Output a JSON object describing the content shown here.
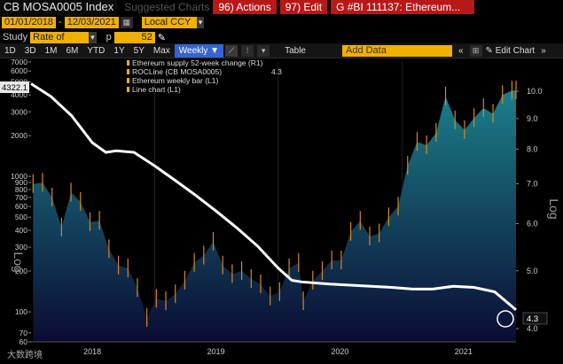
{
  "header": {
    "title": "CB MOSA0005 Index",
    "ghost_label": "Suggested Charts",
    "actions_button": "96) Actions",
    "edit_button": "97) Edit",
    "chart_title_button": "G #BI 111137: Ethereum..."
  },
  "date_range": {
    "start": "01/01/2018",
    "end": "12/03/2021",
    "currency": "Local CCY"
  },
  "study": {
    "label": "Study",
    "value": "Rate of Char",
    "p_label": "p",
    "p_value": "52"
  },
  "toolbar": {
    "periods": [
      "1D",
      "3D",
      "1M",
      "6M",
      "YTD",
      "1Y",
      "5Y",
      "Max"
    ],
    "frequency": "Weekly",
    "table_label": "Table",
    "add_data_placeholder": "Add Data",
    "edit_chart_label": "Edit Chart"
  },
  "watermark": "大数跨境",
  "colors": {
    "area_top": "#1c7f8a",
    "area_bottom": "#0a0c33",
    "bar": "#d98a16",
    "line": "#ffffff",
    "accent": "#f0b000",
    "red_button": "#b71818"
  },
  "chart_data": {
    "type": "area",
    "legend": [
      {
        "label": "Ethereum supply 52-week change (R1)",
        "value": "4.3"
      },
      {
        "label": "ROCLine (CB MOSA0005)",
        "value": "4.3"
      },
      {
        "label": "Ethereum weekly bar (L1)",
        "value": ""
      },
      {
        "label": "Line chart (L1)",
        "value": ""
      }
    ],
    "left_axis": {
      "label": "Log",
      "scale": "log",
      "ylim": [
        60,
        7000
      ],
      "ticks": [
        7000,
        6000,
        5000,
        4000,
        3000,
        2000,
        1000,
        900,
        800,
        700,
        600,
        500,
        400,
        300,
        200,
        100,
        70,
        60
      ]
    },
    "right_axis": {
      "label": "Log",
      "scale": "log",
      "ylim": [
        3.8,
        11.2
      ],
      "ticks": [
        10.0,
        9.0,
        8.0,
        7.0,
        6.0,
        5.0,
        4.0
      ]
    },
    "x_axis": {
      "ticks": [
        "2018",
        "2019",
        "2020",
        "2021"
      ],
      "xlim": [
        "2018-01-01",
        "2021-12-03"
      ]
    },
    "last_values": {
      "price": "4322.1",
      "supply_change": "4.3"
    },
    "series": [
      {
        "name": "Ethereum weekly bar (L1)",
        "x": [
          "2018-01-07",
          "2018-02-04",
          "2018-03-04",
          "2018-04-01",
          "2018-04-29",
          "2018-05-27",
          "2018-06-24",
          "2018-07-22",
          "2018-08-19",
          "2018-09-16",
          "2018-10-14",
          "2018-11-11",
          "2018-12-09",
          "2019-01-06",
          "2019-02-03",
          "2019-03-03",
          "2019-03-31",
          "2019-04-28",
          "2019-05-26",
          "2019-06-23",
          "2019-07-21",
          "2019-08-18",
          "2019-09-15",
          "2019-10-13",
          "2019-11-10",
          "2019-12-08",
          "2020-01-05",
          "2020-02-02",
          "2020-03-01",
          "2020-03-15",
          "2020-04-12",
          "2020-05-10",
          "2020-06-07",
          "2020-07-05",
          "2020-08-02",
          "2020-08-30",
          "2020-09-27",
          "2020-10-25",
          "2020-11-22",
          "2020-12-20",
          "2021-01-17",
          "2021-02-14",
          "2021-03-14",
          "2021-04-11",
          "2021-05-09",
          "2021-06-06",
          "2021-07-04",
          "2021-08-01",
          "2021-08-29",
          "2021-09-26",
          "2021-10-24",
          "2021-11-21",
          "2021-12-03"
        ],
        "values": [
          880,
          900,
          700,
          420,
          760,
          650,
          460,
          470,
          290,
          220,
          210,
          150,
          90,
          125,
          120,
          135,
          170,
          230,
          260,
          330,
          220,
          190,
          200,
          175,
          160,
          130,
          140,
          210,
          230,
          120,
          170,
          200,
          240,
          240,
          390,
          470,
          360,
          380,
          500,
          600,
          1200,
          1800,
          1700,
          2100,
          3900,
          2600,
          2200,
          2700,
          3200,
          2900,
          4000,
          4300,
          4322
        ]
      },
      {
        "name": "Ethereum supply 52-week change (R1)",
        "x": [
          "2018-01-01",
          "2018-03-01",
          "2018-05-01",
          "2018-07-01",
          "2018-08-10",
          "2018-09-10",
          "2018-11-01",
          "2019-01-01",
          "2019-03-01",
          "2019-05-01",
          "2019-07-01",
          "2019-09-01",
          "2019-11-01",
          "2020-01-01",
          "2020-02-10",
          "2020-03-10",
          "2020-06-01",
          "2020-09-01",
          "2020-12-01",
          "2021-02-01",
          "2021-04-01",
          "2021-06-01",
          "2021-08-01",
          "2021-10-01",
          "2021-12-03"
        ],
        "values": [
          10.3,
          9.8,
          9.1,
          8.2,
          7.9,
          7.95,
          7.9,
          7.5,
          7.1,
          6.7,
          6.3,
          5.9,
          5.5,
          5.05,
          4.82,
          4.79,
          4.75,
          4.72,
          4.69,
          4.66,
          4.66,
          4.71,
          4.69,
          4.61,
          4.3
        ]
      }
    ]
  }
}
